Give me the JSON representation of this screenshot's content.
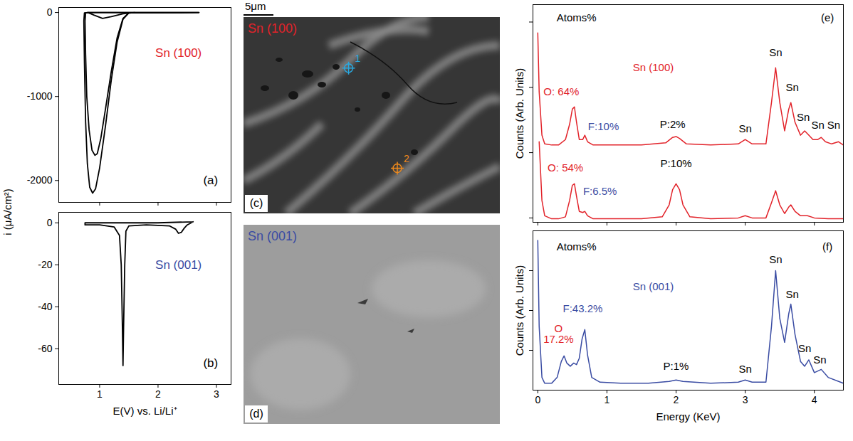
{
  "chart_data": [
    {
      "type": "line",
      "color": "#000000",
      "ylabel": "i (μA/cm²)",
      "xlim": [
        0.3,
        3.25
      ],
      "xticks": [
        1,
        2,
        3
      ],
      "ylim": [
        -2260,
        60
      ],
      "yticks": [
        0,
        -1000,
        -2000
      ],
      "tick_labels": "y",
      "series": [
        {
          "x": [
            2.7,
            1.5,
            1.4,
            1.3,
            1.2,
            1.1,
            1.0,
            0.93,
            0.88,
            0.83,
            0.79,
            0.76,
            0.74,
            0.73,
            0.74,
            0.8,
            1.5,
            2.7
          ],
          "values": [
            0,
            -5,
            -80,
            -350,
            -800,
            -1350,
            -1850,
            -2100,
            -2150,
            -2080,
            -1800,
            -1300,
            -600,
            -100,
            -5,
            0,
            0,
            0
          ]
        },
        {
          "x": [
            2.7,
            1.5,
            1.4,
            1.3,
            1.2,
            1.1,
            1.02,
            0.96,
            0.92,
            0.87,
            0.82,
            0.78,
            0.76,
            0.75,
            0.76,
            0.8,
            2.7
          ],
          "values": [
            0,
            -5,
            -70,
            -300,
            -700,
            -1150,
            -1500,
            -1680,
            -1700,
            -1640,
            -1400,
            -1000,
            -500,
            -100,
            -5,
            0,
            0
          ]
        },
        {
          "x": [
            0.8,
            0.9,
            1.05,
            1.2,
            1.4,
            1.6
          ],
          "values": [
            0,
            -30,
            -70,
            -50,
            -15,
            0
          ]
        }
      ],
      "annotations": [
        {
          "text": "Sn (100)",
          "x": 2.35,
          "y": -484,
          "color": "#e2232a"
        },
        {
          "text": "(a)",
          "x": 2.9,
          "y": -2000,
          "color": "#000000"
        }
      ]
    },
    {
      "type": "line",
      "color": "#000000",
      "xlabel": "E(V) vs. Li/Li⁺",
      "xlim": [
        0.3,
        3.25
      ],
      "xticks": [
        1,
        2,
        3
      ],
      "ylim": [
        -77,
        5
      ],
      "yticks": [
        0,
        -20,
        -40,
        -60
      ],
      "series": [
        {
          "x": [
            2.6,
            2.5,
            2.45,
            2.4,
            2.35,
            2.3,
            2.2,
            1.8,
            1.5,
            1.45,
            1.43,
            1.41,
            1.4,
            1.39,
            1.37,
            1.34,
            1.25,
            1.0,
            0.75,
            0.75,
            1.0,
            1.4,
            2.0,
            2.6
          ],
          "values": [
            0.5,
            -1,
            -2.5,
            -4.5,
            -5,
            -3,
            -1.5,
            -1,
            -1.5,
            -4,
            -20,
            -50,
            -68,
            -50,
            -20,
            -6,
            -2,
            -1,
            -1,
            0,
            0,
            0,
            0,
            0.5
          ]
        }
      ],
      "annotations": [
        {
          "text": "Sn (001)",
          "x": 2.35,
          "y": -20,
          "color": "#3a4ca3"
        },
        {
          "text": "(b)",
          "x": 2.9,
          "y": -67,
          "color": "#000000"
        }
      ]
    },
    {
      "type": "line",
      "color": "#e2232a",
      "ylabel": "Counts (Arb. Units)",
      "xlim": [
        -0.07,
        4.42
      ],
      "xticks": [
        0,
        1,
        2,
        3,
        4
      ],
      "ylim": [
        0,
        100
      ],
      "yticks": [
        2,
        32,
        62,
        92
      ],
      "tick_labels": false,
      "series": [
        {
          "x": [
            0,
            0.02,
            0.06,
            0.1,
            0.2,
            0.3,
            0.4,
            0.46,
            0.5,
            0.53,
            0.56,
            0.6,
            0.65,
            0.68,
            0.72,
            0.8,
            1.0,
            1.5,
            1.85,
            1.95,
            2.0,
            2.05,
            2.15,
            2.5,
            2.9,
            3.0,
            3.1,
            3.3,
            3.38,
            3.44,
            3.5,
            3.57,
            3.63,
            3.66,
            3.72,
            3.8,
            3.86,
            3.92,
            3.98,
            4.05,
            4.1,
            4.16,
            4.25,
            4.35,
            4.42
          ],
          "values": [
            87,
            60,
            40,
            36,
            35.5,
            35.5,
            38,
            45,
            52,
            53,
            46,
            38,
            38,
            40,
            37,
            35.5,
            35.5,
            35.5,
            36.5,
            39,
            39.4,
            38.5,
            36,
            35.5,
            36,
            38,
            36,
            36,
            55,
            71,
            55,
            42,
            52,
            55,
            46,
            40,
            42,
            40,
            38,
            38,
            39,
            37,
            36,
            37,
            35.5
          ]
        },
        {
          "x": [
            0.02,
            0.06,
            0.1,
            0.2,
            0.3,
            0.4,
            0.46,
            0.5,
            0.53,
            0.56,
            0.6,
            0.65,
            0.68,
            0.72,
            0.8,
            1.0,
            1.5,
            1.8,
            1.9,
            1.95,
            2.0,
            2.05,
            2.1,
            2.2,
            2.5,
            2.9,
            3.0,
            3.1,
            3.3,
            3.38,
            3.44,
            3.5,
            3.57,
            3.63,
            3.66,
            3.72,
            3.8,
            3.9,
            4.0,
            4.2,
            4.42
          ],
          "values": [
            37,
            10,
            3,
            1.6,
            1.6,
            2.5,
            10,
            17,
            17.7,
            12,
            5,
            4.5,
            5,
            3,
            1.6,
            1.6,
            1.6,
            2.5,
            8,
            15,
            17.7,
            15,
            8,
            2.5,
            1.6,
            2,
            3,
            2,
            2,
            9,
            14.5,
            8,
            4,
            7,
            8,
            5,
            3,
            3,
            2,
            1.6,
            1.6
          ]
        }
      ],
      "annotations": [
        {
          "text": "Atoms%",
          "x": 0.56,
          "y": 94,
          "color": "#000000"
        },
        {
          "text": "Sn (100)",
          "x": 1.67,
          "y": 71,
          "color": "#e2232a"
        },
        {
          "text": "(e)",
          "x": 4.19,
          "y": 94,
          "color": "#000000"
        },
        {
          "text": "O: 64%",
          "x": 0.34,
          "y": 60,
          "color": "#e2232a"
        },
        {
          "text": "F:10%",
          "x": 0.95,
          "y": 44,
          "color": "#3a4ca3"
        },
        {
          "text": "P:2%",
          "x": 1.95,
          "y": 45,
          "color": "#000000"
        },
        {
          "text": "O: 54%",
          "x": 0.4,
          "y": 25,
          "color": "#e2232a"
        },
        {
          "text": "F:6.5%",
          "x": 0.9,
          "y": 14,
          "color": "#3a4ca3"
        },
        {
          "text": "P:10%",
          "x": 2.0,
          "y": 27,
          "color": "#000000"
        },
        {
          "text": "Sn",
          "x": 3.0,
          "y": 43,
          "color": "#000000"
        },
        {
          "text": "Sn",
          "x": 3.44,
          "y": 78,
          "color": "#000000"
        },
        {
          "text": "Sn",
          "x": 3.68,
          "y": 62,
          "color": "#000000"
        },
        {
          "text": "Sn",
          "x": 3.84,
          "y": 48,
          "color": "#000000"
        },
        {
          "text": "Sn",
          "x": 4.05,
          "y": 44.5,
          "color": "#000000"
        },
        {
          "text": "Sn",
          "x": 4.28,
          "y": 44.5,
          "color": "#000000"
        }
      ]
    },
    {
      "type": "line",
      "color": "#3a4ca3",
      "ylabel": "Counts (Arb. Units)",
      "xlabel": "Energy (KeV)",
      "xlim": [
        -0.07,
        4.42
      ],
      "xticks": [
        0,
        1,
        2,
        3,
        4
      ],
      "ylim": [
        0,
        100
      ],
      "yticks": [
        25,
        50,
        75
      ],
      "tick_labels": "x",
      "series": [
        {
          "x": [
            0,
            0.02,
            0.06,
            0.1,
            0.2,
            0.28,
            0.34,
            0.38,
            0.42,
            0.47,
            0.52,
            0.56,
            0.6,
            0.64,
            0.68,
            0.72,
            0.78,
            0.9,
            1.2,
            1.6,
            1.9,
            2.0,
            2.1,
            2.5,
            2.9,
            3.0,
            3.1,
            3.3,
            3.38,
            3.44,
            3.5,
            3.57,
            3.63,
            3.66,
            3.72,
            3.8,
            3.86,
            3.92,
            4.0,
            4.1,
            4.2,
            4.42
          ],
          "values": [
            94,
            40,
            8,
            4.3,
            4.3,
            8,
            18,
            21.5,
            17,
            15,
            17,
            16,
            20,
            32,
            38,
            22,
            8,
            5,
            4.3,
            4.3,
            5.5,
            6.4,
            5.5,
            4.3,
            5,
            6.4,
            5,
            5,
            40,
            75,
            45,
            30,
            48,
            54,
            35,
            18,
            15,
            19,
            11,
            13,
            8,
            4.3
          ]
        }
      ],
      "annotations": [
        {
          "text": "Atoms%",
          "x": 0.56,
          "y": 90,
          "color": "#000000"
        },
        {
          "text": "Sn (001)",
          "x": 1.67,
          "y": 65,
          "color": "#3a4ca3"
        },
        {
          "text": "(f)",
          "x": 4.19,
          "y": 90,
          "color": "#000000"
        },
        {
          "text": "F:43.2%",
          "x": 0.65,
          "y": 51,
          "color": "#3a4ca3"
        },
        {
          "text": "O\n17.2%",
          "x": 0.3,
          "y": 35,
          "color": "#e2232a"
        },
        {
          "text": "P:1%",
          "x": 2.0,
          "y": 15,
          "color": "#000000"
        },
        {
          "text": "Sn",
          "x": 3.0,
          "y": 13,
          "color": "#000000"
        },
        {
          "text": "Sn",
          "x": 3.44,
          "y": 82,
          "color": "#000000"
        },
        {
          "text": "Sn",
          "x": 3.68,
          "y": 60,
          "color": "#000000"
        },
        {
          "text": "Sn",
          "x": 3.86,
          "y": 26,
          "color": "#000000"
        },
        {
          "text": "Sn",
          "x": 4.08,
          "y": 19,
          "color": "#000000"
        }
      ]
    }
  ],
  "images": {
    "scale_bar": "5μm",
    "panels": [
      {
        "title": "Sn (100)",
        "color": "#e2232a",
        "label": "(c)",
        "markers": [
          {
            "text": "1",
            "color": "#29a9e1"
          },
          {
            "text": "2",
            "color": "#ef8a1c"
          }
        ]
      },
      {
        "title": "Sn (001)",
        "color": "#3a4ca3",
        "label": "(d)",
        "markers": []
      }
    ]
  }
}
